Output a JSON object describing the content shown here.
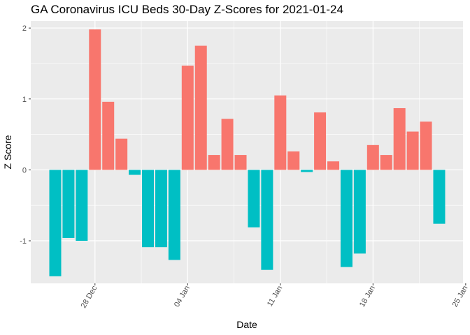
{
  "chart_data": {
    "type": "bar",
    "title": "GA Coronavirus ICU Beds 30-Day Z-Scores for 2021-01-24",
    "xlabel": "Date",
    "ylabel": "Z Score",
    "x_start": "2020-12-25",
    "values": [
      -1.5,
      -0.96,
      -1.0,
      1.98,
      0.96,
      0.44,
      -0.07,
      -1.09,
      -1.09,
      -1.27,
      1.47,
      1.75,
      0.21,
      0.72,
      0.21,
      -0.81,
      -1.41,
      1.05,
      0.26,
      -0.03,
      0.81,
      0.12,
      -1.37,
      -1.18,
      0.35,
      0.21,
      0.87,
      0.54,
      0.68,
      -0.76
    ],
    "x_ticks": [
      "28 Dec",
      "04 Jan",
      "11 Jan",
      "18 Jan",
      "25 Jan"
    ],
    "y_ticks": [
      "-1",
      "0",
      "1",
      "2"
    ],
    "ylim": [
      -1.6,
      2.1
    ],
    "grid": true,
    "legend": "none",
    "positive_color": "#F8766D",
    "negative_color": "#00BFC4",
    "panel_color": "#EBEBEB",
    "grid_color": "#FFFFFF"
  }
}
